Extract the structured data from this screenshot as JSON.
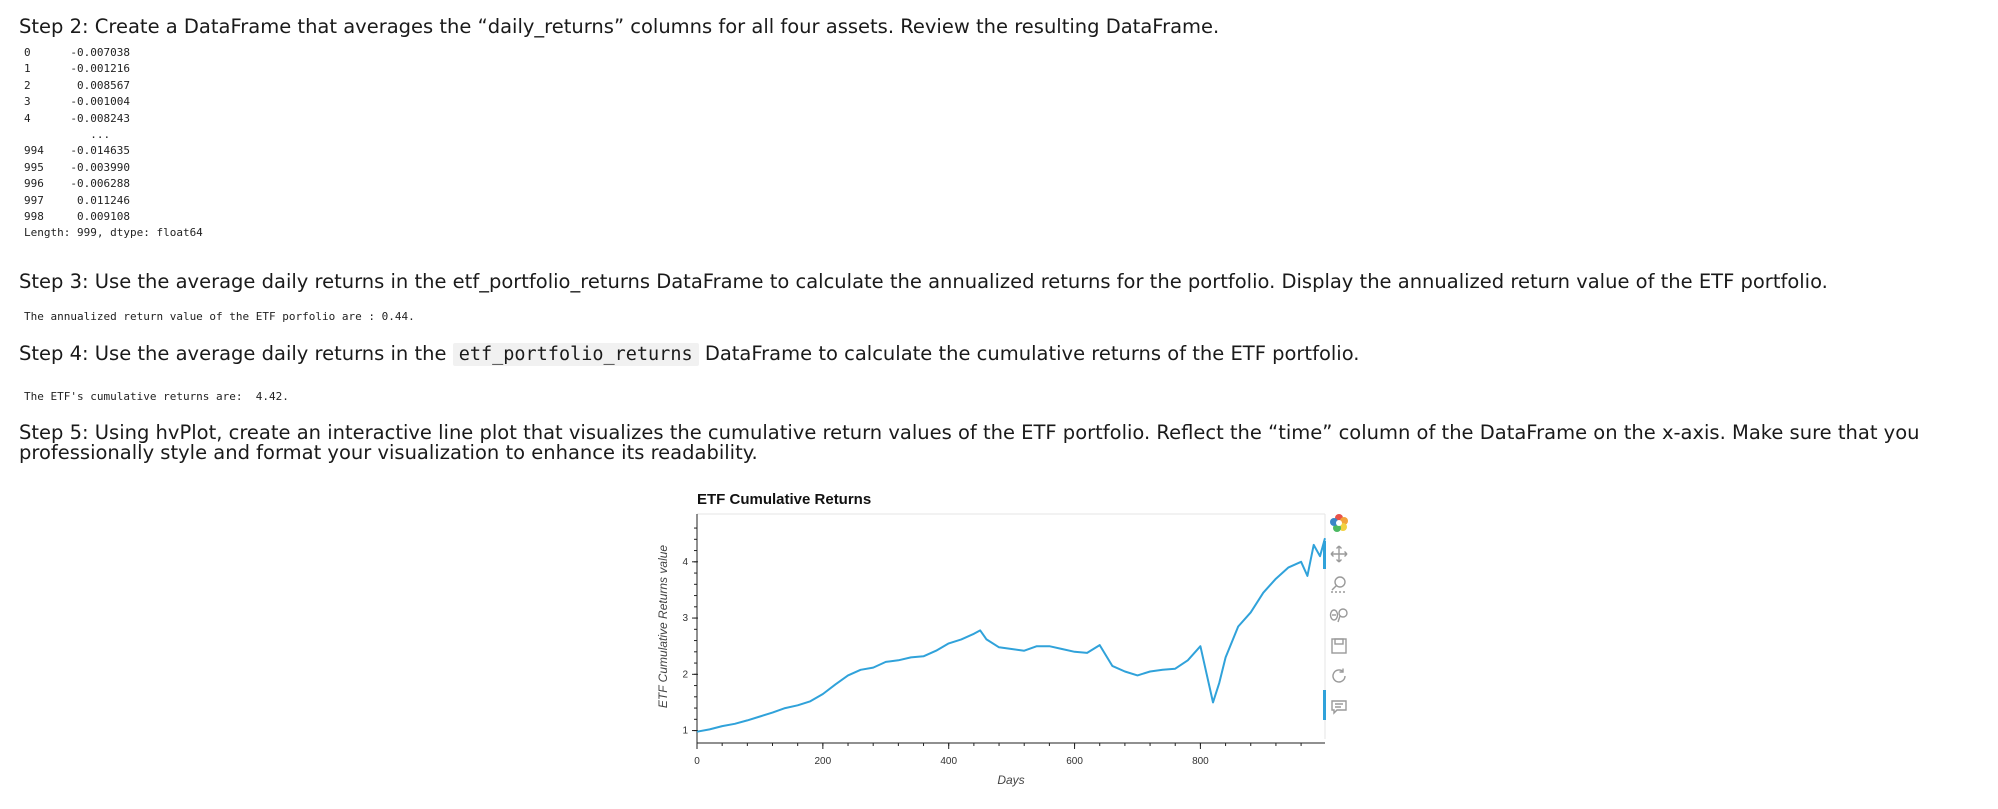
{
  "steps": {
    "step2": "Step 2: Create a DataFrame that averages the “daily_returns” columns for all four assets. Review the resulting DataFrame.",
    "step3": "Step 3: Use the average daily returns in the etf_portfolio_returns DataFrame to calculate the annualized returns for the portfolio. Display the annualized return value of the ETF portfolio.",
    "step4_prefix": "Step 4: Use the average daily returns in the",
    "step4_code": "etf_portfolio_returns",
    "step4_suffix": "DataFrame to calculate the cumulative returns of the ETF portfolio.",
    "step5": "Step 5: Using hvPlot, create an interactive line plot that visualizes the cumulative return values of the ETF portfolio. Reflect the “time” column of the DataFrame on the x-axis. Make sure that you professionally style and format your visualization to enhance its readability."
  },
  "series_output": "0      -0.007038\n1      -0.001216\n2       0.008567\n3      -0.001004\n4      -0.008243\n          ...\n994    -0.014635\n995    -0.003990\n996    -0.006288\n997     0.011246\n998     0.009108\nLength: 999, dtype: float64",
  "annualized_output": "The annualized return value of the ETF porfolio are : 0.44.",
  "cumulative_output": "The ETF's cumulative returns are:  4.42.",
  "toolbar": {
    "icons": [
      "bokeh-logo-icon",
      "pan-icon",
      "box-zoom-icon",
      "wheel-zoom-icon",
      "save-icon",
      "reset-icon",
      "hover-icon"
    ]
  },
  "chart_data": {
    "type": "line",
    "title": "ETF Cumulative Returns",
    "xlabel": "Days",
    "ylabel": "ETF Cumulative Returns value",
    "xlim": [
      0,
      998
    ],
    "ylim": [
      0.85,
      4.85
    ],
    "x_ticks": [
      0,
      200,
      400,
      600,
      800
    ],
    "y_ticks": [
      1,
      2,
      3,
      4
    ],
    "grid": false,
    "line_color": "#30a2da",
    "series": [
      {
        "x": [
          0,
          20,
          40,
          60,
          80,
          100,
          120,
          140,
          160,
          180,
          200,
          220,
          240,
          260,
          280,
          300,
          320,
          340,
          360,
          380,
          400,
          420,
          440,
          450,
          460,
          480,
          500,
          520,
          540,
          560,
          580,
          600,
          620,
          640,
          660,
          680,
          700,
          720,
          740,
          760,
          780,
          800,
          810,
          820,
          830,
          840,
          860,
          880,
          900,
          920,
          940,
          960,
          970,
          980,
          990,
          998
        ],
        "y": [
          0.98,
          1.02,
          1.08,
          1.12,
          1.18,
          1.25,
          1.32,
          1.4,
          1.45,
          1.52,
          1.65,
          1.82,
          1.98,
          2.08,
          2.12,
          2.22,
          2.25,
          2.3,
          2.32,
          2.42,
          2.55,
          2.62,
          2.72,
          2.78,
          2.62,
          2.48,
          2.45,
          2.42,
          2.5,
          2.5,
          2.45,
          2.4,
          2.38,
          2.52,
          2.15,
          2.05,
          1.98,
          2.05,
          2.08,
          2.1,
          2.25,
          2.5,
          2.0,
          1.5,
          1.85,
          2.3,
          2.85,
          3.1,
          3.45,
          3.7,
          3.9,
          4.0,
          3.75,
          4.3,
          4.1,
          4.42
        ]
      }
    ]
  }
}
